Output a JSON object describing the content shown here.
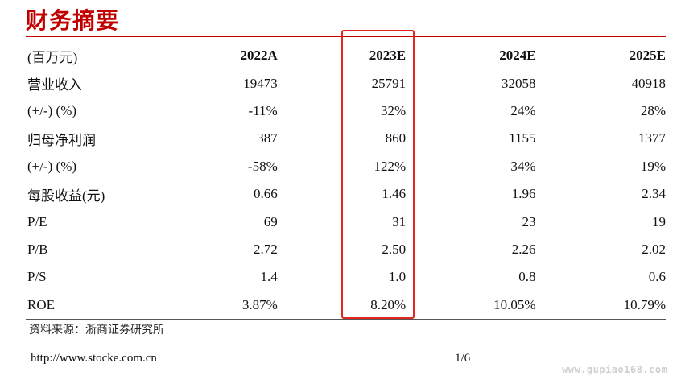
{
  "title": "财务摘要",
  "table": {
    "header": [
      "(百万元)",
      "2022A",
      "2023E",
      "2024E",
      "2025E"
    ],
    "rows": [
      [
        "营业收入",
        "19473",
        "25791",
        "32058",
        "40918"
      ],
      [
        "(+/-) (%)",
        "-11%",
        "32%",
        "24%",
        "28%"
      ],
      [
        "归母净利润",
        "387",
        "860",
        "1155",
        "1377"
      ],
      [
        "(+/-) (%)",
        "-58%",
        "122%",
        "34%",
        "19%"
      ],
      [
        "每股收益(元)",
        "0.66",
        "1.46",
        "1.96",
        "2.34"
      ],
      [
        "P/E",
        "69",
        "31",
        "23",
        "19"
      ],
      [
        "P/B",
        "2.72",
        "2.50",
        "2.26",
        "2.02"
      ],
      [
        "P/S",
        "1.4",
        "1.0",
        "0.8",
        "0.6"
      ],
      [
        "ROE",
        "3.87%",
        "8.20%",
        "10.05%",
        "10.79%"
      ]
    ]
  },
  "source": "资料来源：浙商证券研究所",
  "footer": {
    "url": "http://www.stocke.com.cn",
    "page": "1/6"
  },
  "highlighted_column": "2023E",
  "watermark": "www.gupiao168.com",
  "colors": {
    "title": "#c00000",
    "rule": "#c00000",
    "highlight_box": "#e5261f"
  }
}
